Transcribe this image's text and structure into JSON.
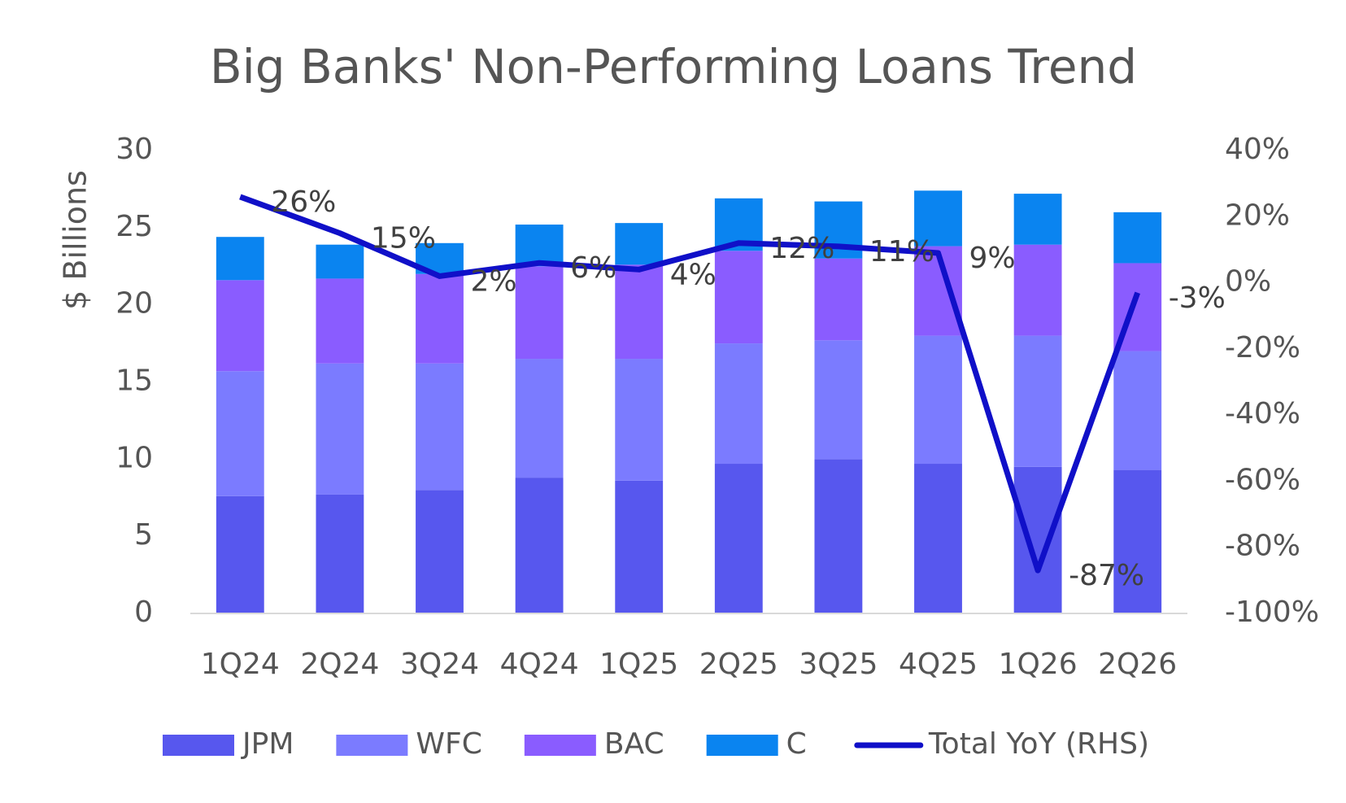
{
  "chart_data": {
    "type": "bar",
    "title": "Big Banks' Non-Performing Loans Trend",
    "categories": [
      "1Q24",
      "2Q24",
      "3Q24",
      "4Q24",
      "1Q25",
      "2Q25",
      "3Q25",
      "4Q25",
      "1Q26",
      "2Q26"
    ],
    "y_label": "$ Billions",
    "ylim": [
      0,
      30
    ],
    "yticks": [
      0,
      5,
      10,
      15,
      20,
      25,
      30
    ],
    "y2lim": [
      -100,
      40
    ],
    "y2ticks": [
      {
        "value": -100,
        "label": "-100%"
      },
      {
        "value": -80,
        "label": "-80%"
      },
      {
        "value": -60,
        "label": "-60%"
      },
      {
        "value": -40,
        "label": "-40%"
      },
      {
        "value": -20,
        "label": "-20%"
      },
      {
        "value": 0,
        "label": "0%"
      },
      {
        "value": 20,
        "label": "20%"
      },
      {
        "value": 40,
        "label": "40%"
      }
    ],
    "stacked": true,
    "series": [
      {
        "name": "JPM",
        "color": "#5757ee",
        "values": [
          7.6,
          7.7,
          8.0,
          8.8,
          8.6,
          9.7,
          10.0,
          9.7,
          9.5,
          9.3
        ]
      },
      {
        "name": "WFC",
        "color": "#7b7bff",
        "values": [
          8.1,
          8.5,
          8.2,
          7.7,
          7.9,
          7.8,
          7.7,
          8.3,
          8.5,
          7.7
        ]
      },
      {
        "name": "BAC",
        "color": "#8a5cff",
        "values": [
          5.9,
          5.5,
          5.8,
          6.0,
          6.1,
          6.0,
          5.3,
          5.8,
          5.9,
          5.7
        ]
      },
      {
        "name": "C",
        "color": "#0a84f0",
        "values": [
          2.8,
          2.2,
          2.0,
          2.7,
          2.7,
          3.4,
          3.7,
          3.6,
          3.3,
          3.3
        ]
      },
      {
        "name": "Total YoY (RHS)",
        "type": "line",
        "axis": "y2",
        "color": "#1010c8",
        "values": [
          26,
          15,
          2,
          6,
          4,
          12,
          11,
          9,
          -87,
          -3
        ],
        "value_labels": [
          "26%",
          "15%",
          "2%",
          "6%",
          "4%",
          "12%",
          "11%",
          "9%",
          "-87%",
          "-3%"
        ]
      }
    ]
  }
}
